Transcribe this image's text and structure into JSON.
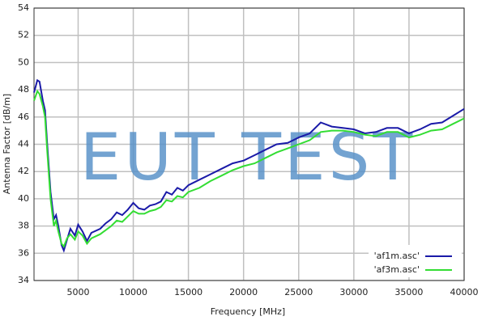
{
  "chart_data": {
    "type": "line",
    "xlabel": "Frequency [MHz]",
    "ylabel": "Antenna Factor [dB/m]",
    "watermark": "EUT TEST",
    "x": [
      1000,
      1300,
      1500,
      1800,
      2000,
      2200,
      2500,
      2800,
      3000,
      3200,
      3500,
      3700,
      4000,
      4300,
      4700,
      5000,
      5400,
      5800,
      6200,
      7000,
      7500,
      8000,
      8500,
      9000,
      9500,
      10000,
      10500,
      11000,
      11500,
      12000,
      12500,
      13000,
      13500,
      14000,
      14500,
      15000,
      16000,
      17000,
      18000,
      19000,
      20000,
      21000,
      22000,
      23000,
      24000,
      25000,
      26000,
      27000,
      28000,
      29000,
      30000,
      31000,
      32000,
      33000,
      34000,
      35000,
      36000,
      37000,
      38000,
      39000,
      40000
    ],
    "series": [
      {
        "name": "'af1m.asc'",
        "color": "#1a1aa8",
        "values": [
          47.8,
          48.7,
          48.6,
          47.2,
          46.5,
          44,
          40.5,
          38.5,
          38.8,
          38,
          36.6,
          36.2,
          37,
          37.8,
          37.3,
          38.1,
          37.6,
          36.9,
          37.5,
          37.8,
          38.2,
          38.5,
          39,
          38.8,
          39.2,
          39.7,
          39.3,
          39.2,
          39.5,
          39.6,
          39.8,
          40.5,
          40.3,
          40.8,
          40.6,
          41,
          41.4,
          41.8,
          42.2,
          42.6,
          42.8,
          43.2,
          43.6,
          44,
          44.1,
          44.5,
          44.8,
          45.6,
          45.3,
          45.2,
          45.1,
          44.8,
          44.9,
          45.2,
          45.2,
          44.8,
          45.1,
          45.5,
          45.6,
          46.1,
          46.6
        ]
      },
      {
        "name": "'af3m.asc'",
        "color": "#33dd33",
        "values": [
          47.2,
          47.9,
          47.7,
          46.8,
          46,
          43.5,
          40,
          38,
          38.4,
          37.6,
          36.7,
          36.5,
          37.1,
          37.4,
          37,
          37.6,
          37.3,
          36.7,
          37.1,
          37.4,
          37.7,
          38,
          38.4,
          38.3,
          38.7,
          39.1,
          38.9,
          38.9,
          39.1,
          39.2,
          39.4,
          39.9,
          39.8,
          40.2,
          40.1,
          40.5,
          40.8,
          41.3,
          41.7,
          42.1,
          42.4,
          42.6,
          43,
          43.4,
          43.7,
          44,
          44.3,
          44.9,
          45,
          45,
          44.9,
          44.7,
          44.6,
          44.9,
          44.9,
          44.5,
          44.7,
          45,
          45.1,
          45.5,
          45.9
        ]
      }
    ],
    "xlim": [
      1000,
      40000
    ],
    "xticks": [
      5000,
      10000,
      15000,
      20000,
      25000,
      30000,
      35000,
      40000
    ],
    "ylim": [
      34,
      54
    ],
    "yticks": [
      34,
      36,
      38,
      40,
      42,
      44,
      46,
      48,
      50,
      52,
      54
    ],
    "grid": true,
    "legend": "lower right"
  }
}
